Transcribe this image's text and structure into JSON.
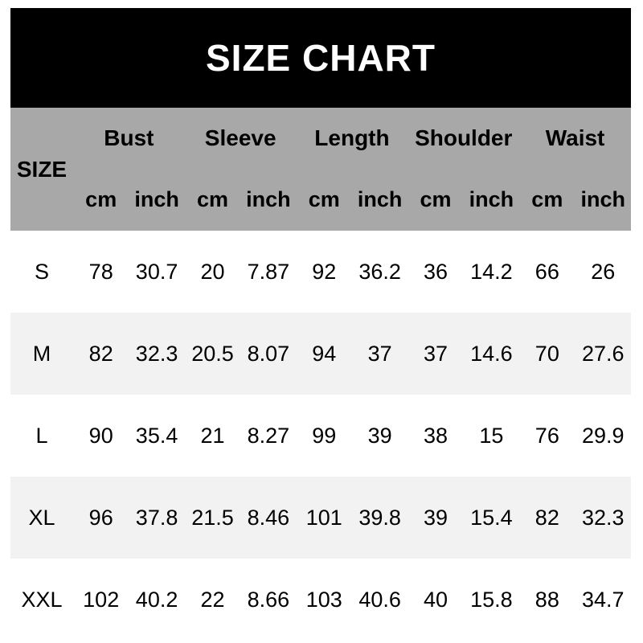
{
  "banner": {
    "title": "SIZE CHART"
  },
  "colors": {
    "banner_bg": "#000000",
    "banner_text": "#ffffff",
    "header_bg": "#a8a8a8",
    "alt_row_bg": "#f2f2f2",
    "page_bg": "#ffffff",
    "text": "#000000"
  },
  "chart_data": {
    "type": "table",
    "title": "SIZE CHART",
    "size_column_label": "SIZE",
    "groups": [
      {
        "label": "Bust",
        "units": [
          "cm",
          "inch"
        ]
      },
      {
        "label": "Sleeve",
        "units": [
          "cm",
          "inch"
        ]
      },
      {
        "label": "Length",
        "units": [
          "cm",
          "inch"
        ]
      },
      {
        "label": "Shoulder",
        "units": [
          "cm",
          "inch"
        ]
      },
      {
        "label": "Waist",
        "units": [
          "cm",
          "inch"
        ]
      }
    ],
    "rows": [
      {
        "size": "S",
        "values": [
          78,
          30.7,
          20,
          7.87,
          92,
          36.2,
          36,
          14.2,
          66,
          26
        ]
      },
      {
        "size": "M",
        "values": [
          82,
          32.3,
          20.5,
          8.07,
          94,
          37,
          37,
          14.6,
          70,
          27.6
        ]
      },
      {
        "size": "L",
        "values": [
          90,
          35.4,
          21,
          8.27,
          99,
          39,
          38,
          15,
          76,
          29.9
        ]
      },
      {
        "size": "XL",
        "values": [
          96,
          37.8,
          21.5,
          8.46,
          101,
          39.8,
          39,
          15.4,
          82,
          32.3
        ]
      },
      {
        "size": "XXL",
        "values": [
          102,
          40.2,
          22,
          8.66,
          103,
          40.6,
          40,
          15.8,
          88,
          34.7
        ]
      }
    ]
  }
}
